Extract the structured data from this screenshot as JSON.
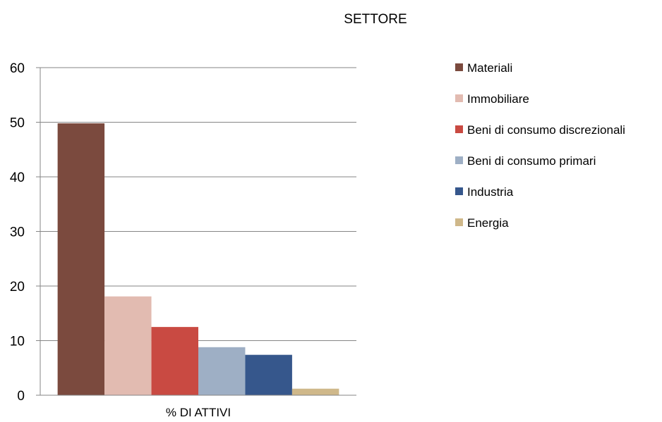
{
  "chart_data": {
    "type": "bar",
    "title": "SETTORE",
    "categories": [
      "% DI ATTIVI"
    ],
    "series": [
      {
        "name": "Materiali",
        "values": [
          49.8
        ],
        "color": "#7B4A3E"
      },
      {
        "name": "Immobiliare",
        "values": [
          18.1
        ],
        "color": "#E2BBB1"
      },
      {
        "name": "Beni di consumo discrezionali",
        "values": [
          12.5
        ],
        "color": "#C94A42"
      },
      {
        "name": "Beni di consumo primari",
        "values": [
          8.8
        ],
        "color": "#9EAFC5"
      },
      {
        "name": "Industria",
        "values": [
          7.4
        ],
        "color": "#36578C"
      },
      {
        "name": "Energia",
        "values": [
          1.2
        ],
        "color": "#CFB88A"
      }
    ],
    "ylim": [
      0,
      60
    ],
    "yticks": [
      0,
      10,
      20,
      30,
      40,
      50,
      60
    ],
    "grid": true,
    "legend_position": "right"
  }
}
